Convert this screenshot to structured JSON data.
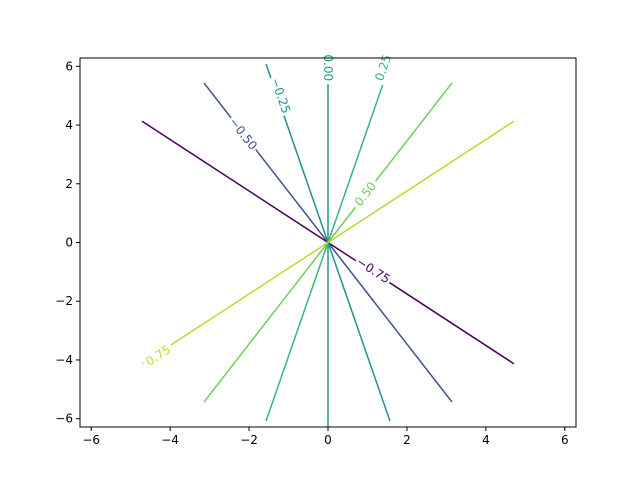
{
  "chart_data": {
    "type": "line",
    "title": "",
    "xlabel": "",
    "ylabel": "",
    "xlim": [
      -6.283,
      6.283
    ],
    "ylim": [
      -6.283,
      6.283
    ],
    "xticks": [
      -6,
      -4,
      -2,
      0,
      2,
      4,
      6
    ],
    "yticks": [
      -6,
      -4,
      -2,
      0,
      2,
      4,
      6
    ],
    "xtick_labels": [
      "−6",
      "−4",
      "−2",
      "0",
      "2",
      "4",
      "6"
    ],
    "ytick_labels": [
      "−6",
      "−4",
      "−2",
      "0",
      "2",
      "4",
      "6"
    ],
    "grid": false,
    "legend": "none",
    "series": [
      {
        "label": "−0.75",
        "color": "#440154",
        "x": [
          -4.71,
          4.71
        ],
        "y": [
          4.13,
          -4.13
        ],
        "label_x": 1.15,
        "label_y": -0.95
      },
      {
        "label": "−0.50",
        "color": "#3b528b",
        "x": [
          -3.14,
          3.14
        ],
        "y": [
          5.43,
          -5.43
        ],
        "label_x": -2.15,
        "label_y": 3.7
      },
      {
        "label": "−0.25",
        "color": "#21918c",
        "x": [
          -1.57,
          1.57
        ],
        "y": [
          6.08,
          -6.08
        ],
        "label_x": -1.2,
        "label_y": 5.0
      },
      {
        "label": "0.00",
        "color": "#1f9e89",
        "x": [
          0,
          0
        ],
        "y": [
          6.28,
          -6.28
        ],
        "label_x": 0.0,
        "label_y": 5.95
      },
      {
        "label": "0.25",
        "color": "#35b779",
        "x": [
          -1.57,
          1.57
        ],
        "y": [
          -6.08,
          6.08
        ],
        "label_x": 1.4,
        "label_y": 5.95
      },
      {
        "label": "0.50",
        "color": "#6ece58",
        "x": [
          -3.14,
          3.14
        ],
        "y": [
          -5.43,
          5.43
        ],
        "label_x": 0.95,
        "label_y": 1.65
      },
      {
        "label": "0.75",
        "color": "#b5de2b",
        "x": [
          -4.71,
          4.71
        ],
        "y": [
          -4.13,
          4.13
        ],
        "label_x": -4.3,
        "label_y": -3.85
      }
    ]
  }
}
